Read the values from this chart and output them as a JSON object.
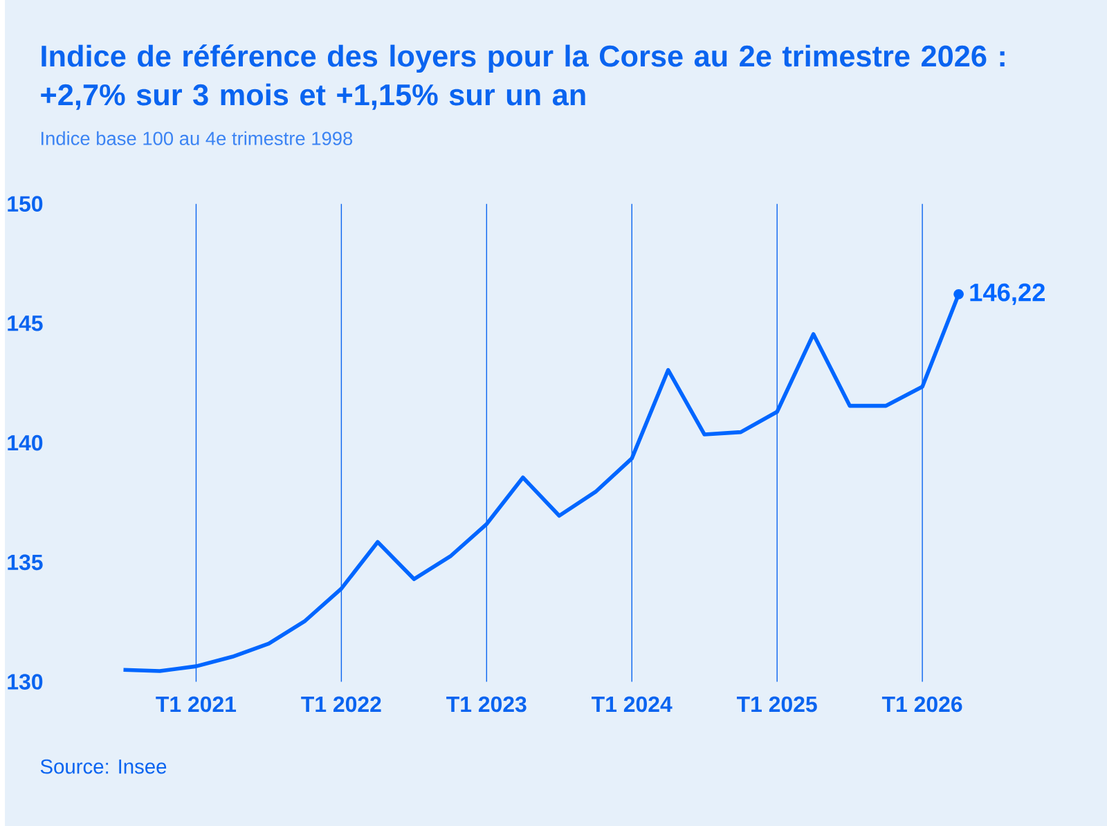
{
  "chart_data": {
    "type": "line",
    "title": "Indice de référence des loyers pour la Corse au 2e trimestre 2026 : +2,7% sur 3 mois et +1,15% sur un an",
    "subtitle": "Indice base 100 au 4e trimestre 1998",
    "annotations": [
      "Source: Insee"
    ],
    "categories": [
      null,
      null,
      "T1 2021",
      null,
      null,
      null,
      "T1 2022",
      null,
      null,
      null,
      "T1 2023",
      null,
      null,
      null,
      "T1 2024",
      null,
      null,
      null,
      "T1 2025",
      null,
      null,
      null,
      "T1 2026",
      null
    ],
    "series": [
      {
        "color": "#0066ff",
        "values": [
          130.5,
          130.45,
          130.65,
          131.05,
          131.6,
          132.55,
          133.9,
          135.85,
          134.3,
          135.25,
          136.6,
          138.55,
          136.95,
          137.95,
          139.35,
          143.05,
          140.35,
          140.45,
          141.3,
          144.55,
          141.55,
          141.55,
          142.35,
          146.22
        ],
        "value_labels": [
          null,
          null,
          null,
          null,
          null,
          null,
          null,
          null,
          null,
          null,
          null,
          null,
          null,
          null,
          null,
          null,
          null,
          null,
          null,
          null,
          null,
          null,
          null,
          "146,22"
        ]
      }
    ],
    "ylim": [
      130,
      150
    ],
    "yticks": [
      130,
      135,
      140,
      145,
      150
    ],
    "grid": "x",
    "marker": "none",
    "line_style": "solid"
  }
}
